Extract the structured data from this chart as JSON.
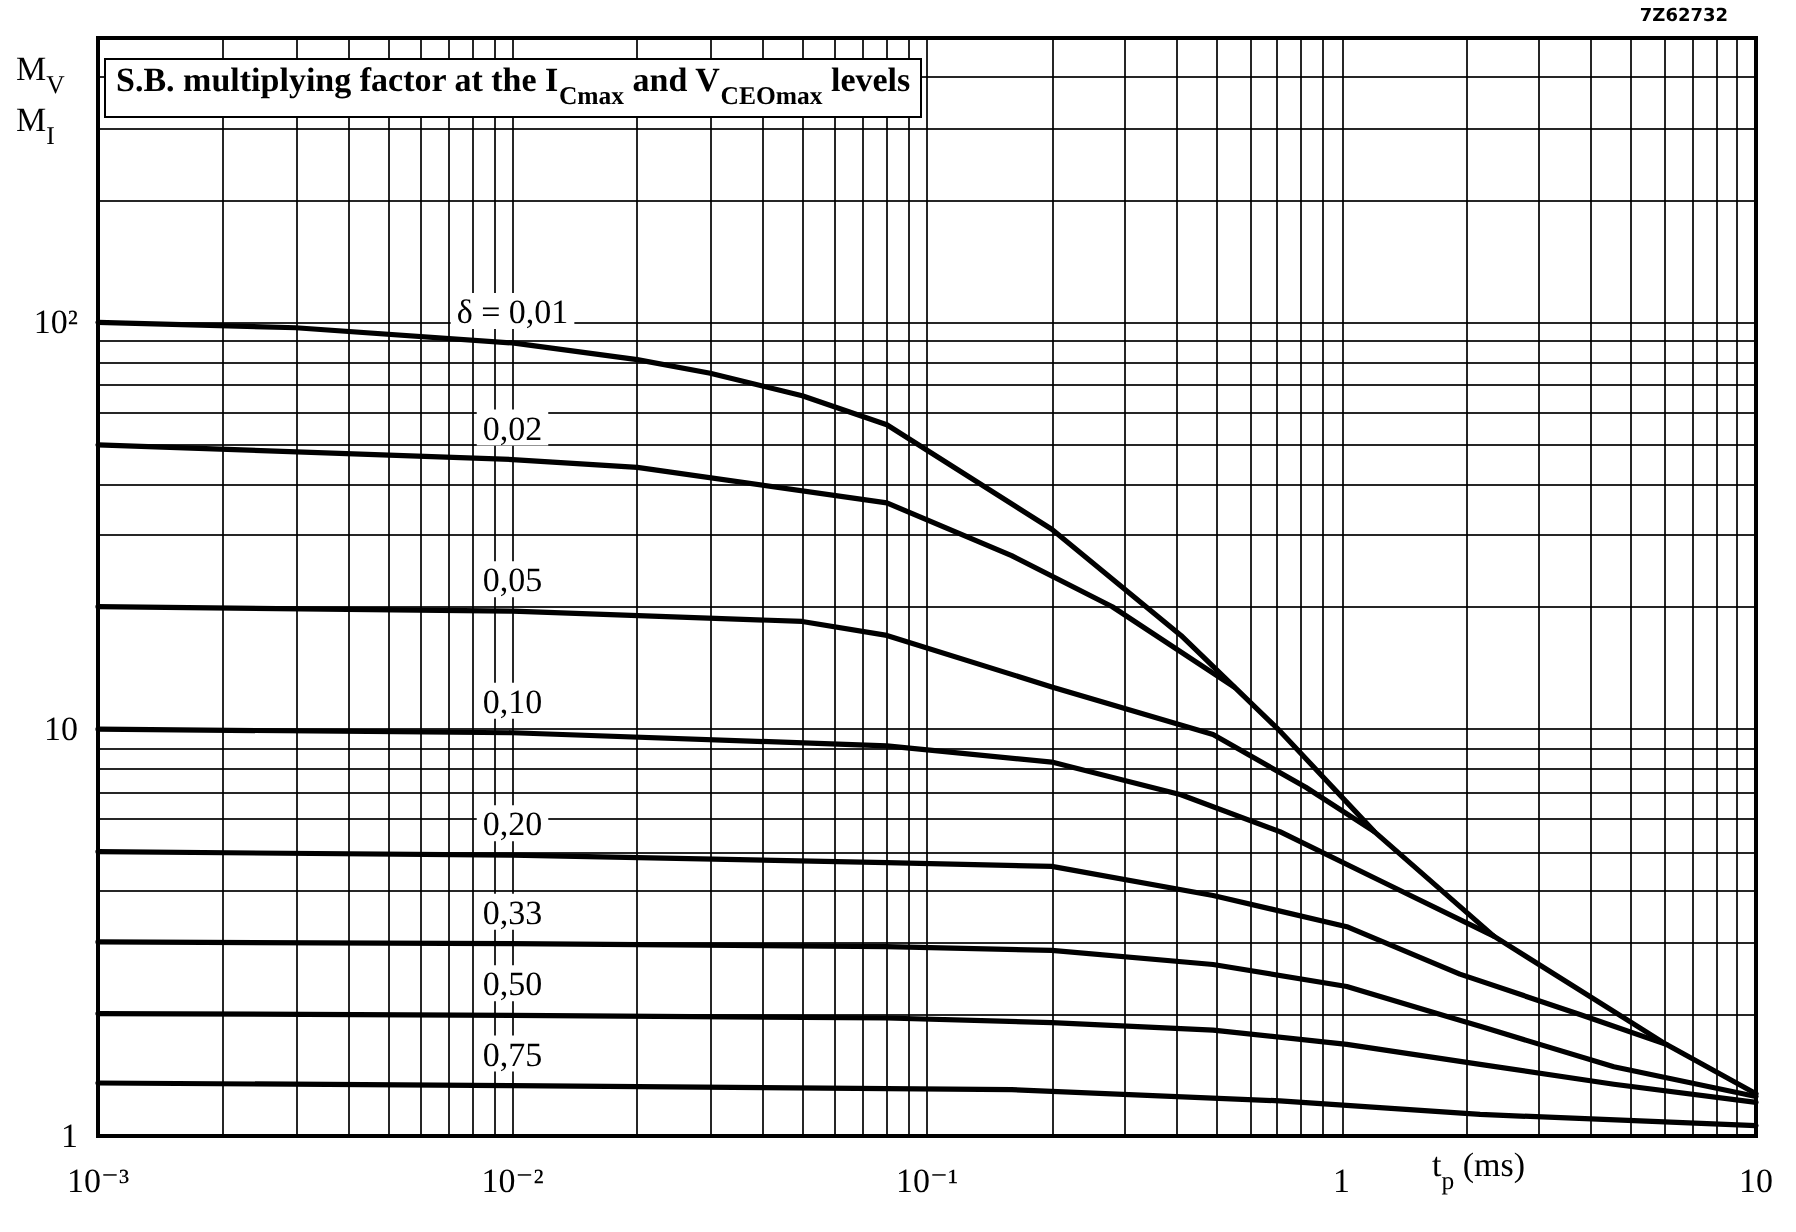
{
  "chart_data": {
    "type": "line",
    "title": "S.B. multiplying factor at the I$_{Cmax}$ and V$_{CEOmax}$ levels",
    "xlabel": "t$_{p}$ (ms)",
    "ylabel": "M$_{V}$\nM$_{I}$",
    "annotations": [
      "7Z62732"
    ],
    "log": "xy",
    "grid": true,
    "marker": "none",
    "line_style": "solid",
    "xlim": [
      0.001,
      10
    ],
    "ylim": [
      1,
      500
    ],
    "xticks": [
      {
        "value": 0.001,
        "label": "10⁻³"
      },
      {
        "value": 0.002,
        "label": null
      },
      {
        "value": 0.003,
        "label": null
      },
      {
        "value": 0.004,
        "label": null
      },
      {
        "value": 0.005,
        "label": null
      },
      {
        "value": 0.006,
        "label": null
      },
      {
        "value": 0.007,
        "label": null
      },
      {
        "value": 0.008,
        "label": null
      },
      {
        "value": 0.009,
        "label": null
      },
      {
        "value": 0.01,
        "label": "10⁻²"
      },
      {
        "value": 0.02,
        "label": null
      },
      {
        "value": 0.03,
        "label": null
      },
      {
        "value": 0.04,
        "label": null
      },
      {
        "value": 0.05,
        "label": null
      },
      {
        "value": 0.06,
        "label": null
      },
      {
        "value": 0.07,
        "label": null
      },
      {
        "value": 0.08,
        "label": null
      },
      {
        "value": 0.09,
        "label": null
      },
      {
        "value": 0.1,
        "label": "10⁻¹"
      },
      {
        "value": 0.2,
        "label": null
      },
      {
        "value": 0.3,
        "label": null
      },
      {
        "value": 0.4,
        "label": null
      },
      {
        "value": 0.5,
        "label": null
      },
      {
        "value": 0.6,
        "label": null
      },
      {
        "value": 0.7,
        "label": null
      },
      {
        "value": 0.8,
        "label": null
      },
      {
        "value": 0.9,
        "label": null
      },
      1,
      {
        "value": 2,
        "label": null
      },
      {
        "value": 3,
        "label": null
      },
      {
        "value": 4,
        "label": null
      },
      {
        "value": 5,
        "label": null
      },
      {
        "value": 6,
        "label": null
      },
      {
        "value": 7,
        "label": null
      },
      {
        "value": 8,
        "label": null
      },
      {
        "value": 9,
        "label": null
      },
      10
    ],
    "yticks": [
      1,
      {
        "value": 2,
        "label": null
      },
      {
        "value": 3,
        "label": null
      },
      {
        "value": 4,
        "label": null
      },
      {
        "value": 5,
        "label": null
      },
      {
        "value": 6,
        "label": null
      },
      {
        "value": 7,
        "label": null
      },
      {
        "value": 8,
        "label": null
      },
      {
        "value": 9,
        "label": null
      },
      10,
      {
        "value": 20,
        "label": null
      },
      {
        "value": 30,
        "label": null
      },
      {
        "value": 40,
        "label": null
      },
      {
        "value": 50,
        "label": null
      },
      {
        "value": 60,
        "label": null
      },
      {
        "value": 70,
        "label": null
      },
      {
        "value": 80,
        "label": null
      },
      {
        "value": 90,
        "label": null
      },
      {
        "value": 100,
        "label": "10²"
      },
      {
        "value": 200,
        "label": null
      },
      {
        "value": 300,
        "label": null
      },
      {
        "value": 400,
        "label": null
      }
    ],
    "series": [
      {
        "name": "δ = 0,01",
        "color": "#000000",
        "x": [
          0.001,
          0.003,
          0.01,
          0.02,
          0.03,
          0.05,
          0.08,
          0.2,
          0.41,
          0.71,
          1.2,
          2.33,
          6.07,
          10
        ],
        "values": [
          100,
          97,
          89,
          81,
          75,
          66,
          56,
          31,
          17,
          9.9,
          5.6,
          3.1,
          1.68,
          1.27
        ]
      },
      {
        "name": "0,02",
        "color": "#000000",
        "x": [
          0.001,
          0.01,
          0.02,
          0.08,
          0.16,
          0.28,
          0.55
        ],
        "values": [
          50,
          46,
          44,
          36,
          26.7,
          20,
          12.7
        ]
      },
      {
        "name": "0,05",
        "color": "#000000",
        "x": [
          0.001,
          0.01,
          0.05,
          0.08,
          0.2,
          0.49,
          0.82,
          1.2
        ],
        "values": [
          20,
          19.5,
          18.4,
          17,
          12.7,
          9.7,
          7.2,
          5.6
        ]
      },
      {
        "name": "0,10",
        "color": "#000000",
        "x": [
          0.001,
          0.01,
          0.08,
          0.2,
          0.41,
          0.71,
          1.24,
          2.33
        ],
        "values": [
          10,
          9.8,
          9.1,
          8.3,
          6.9,
          5.6,
          4.24,
          3.1
        ]
      },
      {
        "name": "0,20",
        "color": "#000000",
        "x": [
          0.001,
          0.01,
          0.08,
          0.2,
          0.49,
          1.03,
          1.93,
          3.76,
          6.07
        ],
        "values": [
          5,
          4.9,
          4.7,
          4.6,
          3.9,
          3.27,
          2.5,
          1.99,
          1.68
        ]
      },
      {
        "name": "0,33",
        "color": "#000000",
        "x": [
          0.001,
          0.01,
          0.08,
          0.2,
          0.49,
          1.03,
          2.16,
          4.54,
          10
        ],
        "values": [
          3,
          2.97,
          2.92,
          2.86,
          2.64,
          2.33,
          1.86,
          1.48,
          1.25
        ]
      },
      {
        "name": "0,50",
        "color": "#000000",
        "x": [
          0.001,
          0.01,
          0.08,
          0.2,
          0.49,
          1.03,
          2.16,
          4.54,
          10
        ],
        "values": [
          2,
          1.98,
          1.95,
          1.9,
          1.82,
          1.68,
          1.5,
          1.34,
          1.21
        ]
      },
      {
        "name": "0,75",
        "color": "#000000",
        "x": [
          0.001,
          0.01,
          0.16,
          0.71,
          2.16,
          10
        ],
        "values": [
          1.35,
          1.33,
          1.3,
          1.22,
          1.13,
          1.06
        ]
      }
    ]
  }
}
